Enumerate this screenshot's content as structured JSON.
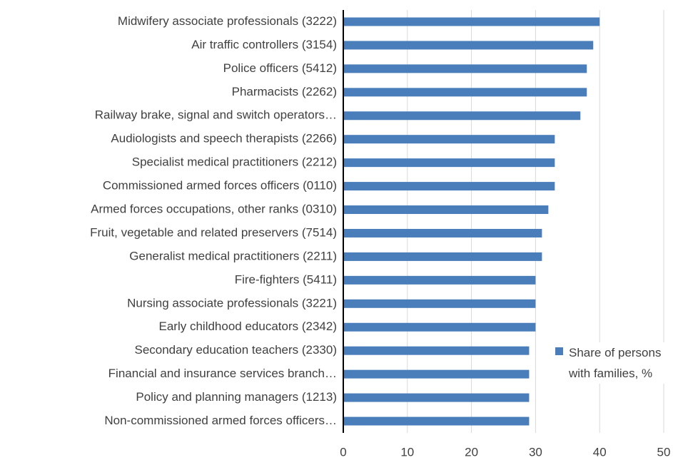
{
  "chart_data": {
    "type": "barh",
    "categories": [
      "Midwifery associate professionals (3222)",
      "Air traffic controllers (3154)",
      "Police officers (5412)",
      "Pharmacists (2262)",
      "Railway brake, signal and switch operators…",
      "Audiologists and speech therapists (2266)",
      "Specialist medical practitioners (2212)",
      "Commissioned armed forces officers (0110)",
      "Armed forces occupations, other ranks (0310)",
      "Fruit, vegetable and related preservers (7514)",
      "Generalist medical practitioners (2211)",
      "Fire-fighters (5411)",
      "Nursing associate professionals (3221)",
      "Early childhood educators (2342)",
      "Secondary education teachers (2330)",
      "Financial and insurance services branch…",
      "Policy and planning managers (1213)",
      "Non-commissioned armed forces officers…"
    ],
    "series": [
      {
        "name": "Share of persons with families, %",
        "color": "#4a7ebb",
        "values": [
          40,
          39,
          38,
          38,
          37,
          33,
          33,
          33,
          32,
          31,
          31,
          30,
          30,
          30,
          29,
          29,
          29,
          29
        ]
      }
    ],
    "xlim": [
      0,
      50
    ],
    "xticks": [
      0,
      10,
      20,
      30,
      40,
      50
    ],
    "grid": true
  }
}
